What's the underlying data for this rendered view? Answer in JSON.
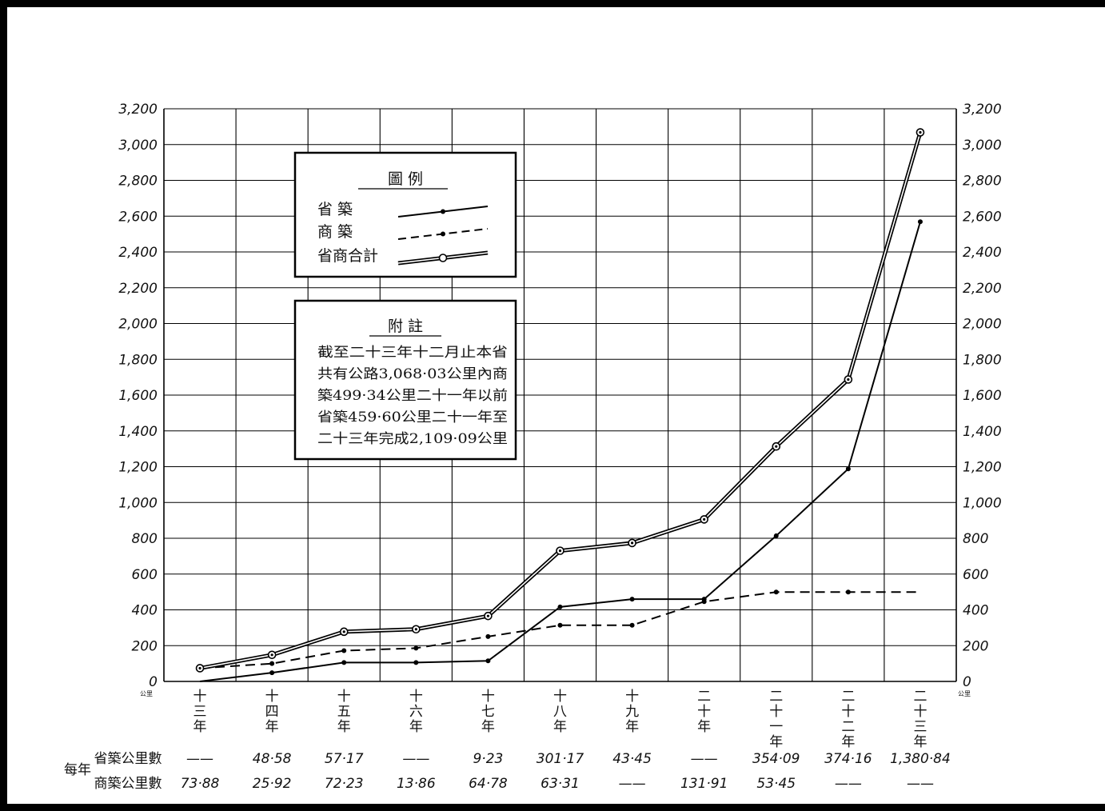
{
  "chart_data": {
    "type": "line",
    "categories": [
      "十三年",
      "十四年",
      "十五年",
      "十六年",
      "十七年",
      "十八年",
      "十九年",
      "二十年",
      "二十一年",
      "二十二年",
      "二十三年"
    ],
    "unit_label": "公里",
    "ylim": [
      0,
      3200
    ],
    "y_ticks": [
      0,
      200,
      400,
      600,
      800,
      1000,
      1200,
      1400,
      1600,
      1800,
      2000,
      2200,
      2400,
      2600,
      2800,
      3000,
      3200
    ],
    "y_tick_labels": [
      "0",
      "200",
      "400",
      "600",
      "800",
      "1,000",
      "1,200",
      "1,400",
      "1,600",
      "1,800",
      "2,000",
      "2,200",
      "2,400",
      "2,600",
      "2,800",
      "3,000",
      "3,200"
    ],
    "grid": true,
    "series": [
      {
        "key": "provincial",
        "name": "省 築",
        "style": "solid",
        "marker": "dot",
        "values": [
          0,
          48.58,
          105.75,
          105.75,
          114.98,
          416.15,
          459.6,
          459.6,
          813.69,
          1187.85,
          2568.69
        ]
      },
      {
        "key": "commercial",
        "name": "商 築",
        "style": "dashed",
        "marker": "dot",
        "values": [
          73.88,
          99.8,
          172.03,
          185.89,
          250.67,
          313.98,
          313.98,
          445.89,
          499.34,
          499.34,
          499.34
        ]
      },
      {
        "key": "total",
        "name": "省商合計",
        "style": "double",
        "marker": "ring",
        "values": [
          73.88,
          148.38,
          277.78,
          291.64,
          365.65,
          730.13,
          773.58,
          905.49,
          1313.03,
          1687.19,
          3068.03
        ]
      }
    ],
    "legend": {
      "title": "圖 例",
      "placement": "top-left"
    },
    "note": {
      "title": "附 註",
      "lines": [
        "截至二十三年十二月止本省",
        "共有公路3,068·03公里內商",
        "築499·34公里二十一年以前",
        "省築459·60公里二十一年至",
        "二十三年完成2,109·09公里"
      ]
    },
    "table": {
      "group_label": "每年",
      "rows": [
        {
          "label": "省築公里數",
          "values": [
            "——",
            "48·58",
            "57·17",
            "——",
            "9·23",
            "301·17",
            "43·45",
            "——",
            "354·09",
            "374·16",
            "1,380·84"
          ]
        },
        {
          "label": "商築公里數",
          "values": [
            "73·88",
            "25·92",
            "72·23",
            "13·86",
            "64·78",
            "63·31",
            "——",
            "131·91",
            "53·45",
            "——",
            "——"
          ]
        }
      ]
    }
  }
}
